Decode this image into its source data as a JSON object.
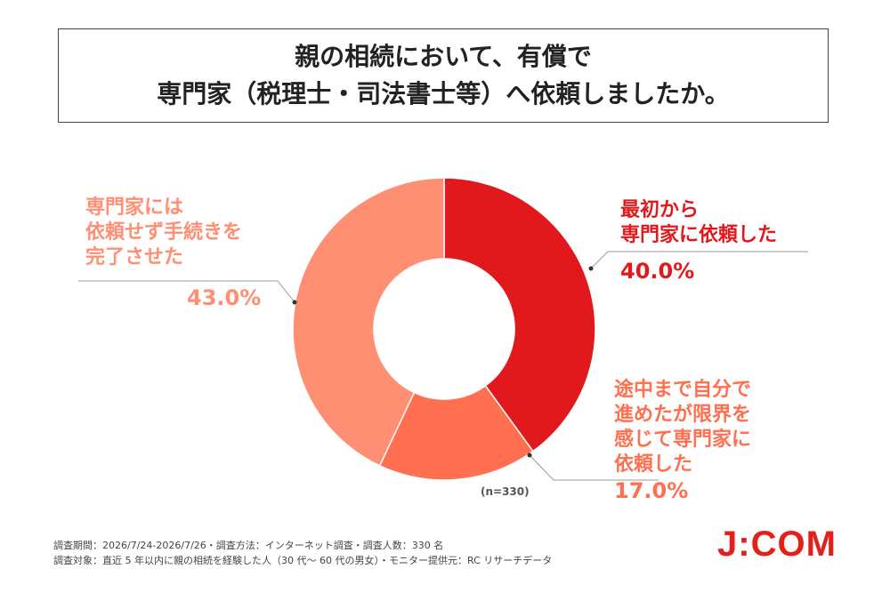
{
  "title": {
    "line1": "親の相続において、有償で",
    "line2": "専門家（税理士・司法書士等）へ依頼しましたか。"
  },
  "chart_data": {
    "type": "pie",
    "sample_note": "(n=330)",
    "slices": [
      {
        "label_lines": [
          "最初から",
          "専門家に依頼した"
        ],
        "value": 40.0,
        "value_label": "40.0%",
        "color": "#e2191c"
      },
      {
        "label_lines": [
          "途中まで自分で",
          "進めたが限界を",
          "感じて専門家に",
          "依頼した"
        ],
        "value": 17.0,
        "value_label": "17.0%",
        "color": "#ff6f50"
      },
      {
        "label_lines": [
          "専門家には",
          "依頼せず手続きを",
          "完了させた"
        ],
        "value": 43.0,
        "value_label": "43.0%",
        "color": "#ff8f73"
      }
    ]
  },
  "footer": {
    "line1": "調査期間：2026/7/24-2026/7/26・調査方法：インターネット調査・調査人数：330 名",
    "line2": "調査対象：直近 5 年以内に親の相続を経験した人（30 代～ 60 代の男女）・モニター提供元：RC リサーチデータ"
  },
  "logo": "J:COM"
}
